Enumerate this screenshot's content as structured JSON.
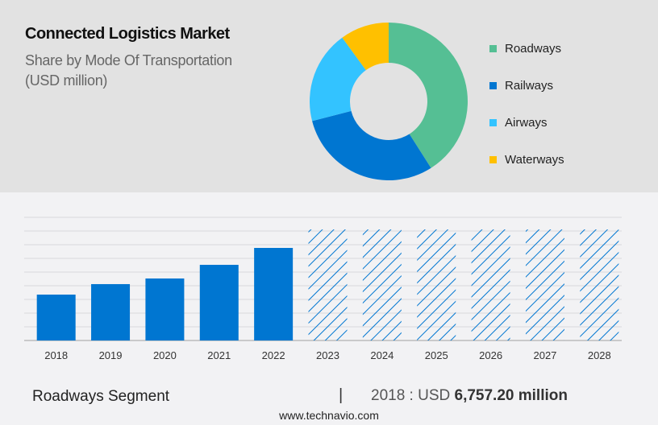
{
  "title": "Connected Logistics Market",
  "subtitle_line1": "Share by Mode Of Transportation",
  "subtitle_line2": "(USD million)",
  "chart_data": [
    {
      "type": "pie",
      "donut": true,
      "categories": [
        "Roadways",
        "Railways",
        "Airways",
        "Waterways"
      ],
      "values": [
        41,
        30,
        19,
        10
      ],
      "colors": [
        "#55bf94",
        "#0076d1",
        "#33c3ff",
        "#ffc000"
      ],
      "legend": "right"
    },
    {
      "type": "bar",
      "categories": [
        "2018",
        "2019",
        "2020",
        "2021",
        "2022",
        "2023",
        "2024",
        "2025",
        "2026",
        "2027",
        "2028"
      ],
      "values": [
        6757.2,
        8300,
        9130,
        11140,
        13630,
        16350,
        16350,
        16350,
        16350,
        16350,
        16350
      ],
      "forecast": [
        false,
        false,
        false,
        false,
        false,
        true,
        true,
        true,
        true,
        true,
        true
      ],
      "color": "#0076d1",
      "ylim": [
        0,
        18135
      ],
      "grid": true,
      "y_tick_labels": false
    }
  ],
  "footer": {
    "segment": "Roadways Segment",
    "separator": "|",
    "value_prefix": "2018 : USD ",
    "value_bold": "6,757.20 million",
    "url": "www.technavio.com"
  }
}
